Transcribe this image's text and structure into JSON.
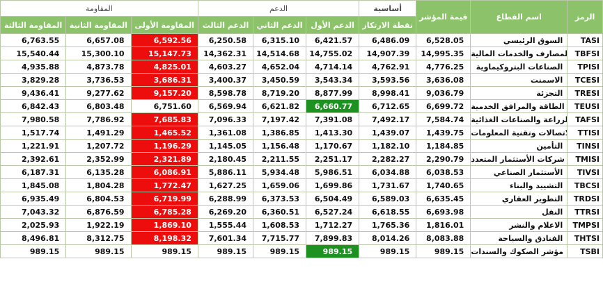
{
  "groups": {
    "resistance": "المقاومة",
    "support": "الدعم",
    "basic": "أساسية",
    "index_value": "قيمة المؤشر",
    "sector_name": "اسم القطاع",
    "symbol": "الرمز"
  },
  "columns": {
    "r3": "المقاومة الثالثة",
    "r2": "المقاومة الثانية",
    "r1": "المقاومة الأولى",
    "s3": "الدعم الثالث",
    "s2": "الدعم الثاني",
    "s1": "الدعم الأول",
    "pivot": "نقطة الارتكاز"
  },
  "colors": {
    "header_green": "#8cc36a",
    "highlight_red": "#ee0d0d",
    "highlight_green": "#1d9221"
  },
  "rows": [
    {
      "r3": "6,763.55",
      "r2": "6,657.08",
      "r1": "6,592.56",
      "s3": "6,250.58",
      "s2": "6,315.10",
      "s1": "6,421.57",
      "pivot": "6,486.09",
      "value": "6,528.05",
      "name": "السوق الرئيسي",
      "sym": "TASI",
      "r1_state": "red",
      "s1_state": ""
    },
    {
      "r3": "15,540.44",
      "r2": "15,300.10",
      "r1": "15,147.73",
      "s3": "14,362.31",
      "s2": "14,514.68",
      "s1": "14,755.02",
      "pivot": "14,907.39",
      "value": "14,995.35",
      "name": "المصارف والخدمات المالية",
      "sym": "TBFSI",
      "r1_state": "red",
      "s1_state": ""
    },
    {
      "r3": "4,935.88",
      "r2": "4,873.78",
      "r1": "4,825.01",
      "s3": "4,603.27",
      "s2": "4,652.04",
      "s1": "4,714.14",
      "pivot": "4,762.91",
      "value": "4,776.25",
      "name": "الصناعات البتروكيماوية",
      "sym": "TPISI",
      "r1_state": "red",
      "s1_state": ""
    },
    {
      "r3": "3,829.28",
      "r2": "3,736.53",
      "r1": "3,686.31",
      "s3": "3,400.37",
      "s2": "3,450.59",
      "s1": "3,543.34",
      "pivot": "3,593.56",
      "value": "3,636.08",
      "name": "الاسمنت",
      "sym": "TCESI",
      "r1_state": "red",
      "s1_state": ""
    },
    {
      "r3": "9,436.41",
      "r2": "9,277.62",
      "r1": "9,157.20",
      "s3": "8,598.78",
      "s2": "8,719.20",
      "s1": "8,877.99",
      "pivot": "8,998.41",
      "value": "9,036.79",
      "name": "التجزئة",
      "sym": "TRESI",
      "r1_state": "red",
      "s1_state": ""
    },
    {
      "r3": "6,842.43",
      "r2": "6,803.48",
      "r1": "6,751.60",
      "s3": "6,569.94",
      "s2": "6,621.82",
      "s1": "6,660.77",
      "pivot": "6,712.65",
      "value": "6,699.72",
      "name": "الطاقة والمرافق الخدمية",
      "sym": "TEUSI",
      "r1_state": "",
      "s1_state": "green"
    },
    {
      "r3": "7,980.58",
      "r2": "7,786.92",
      "r1": "7,685.83",
      "s3": "7,096.33",
      "s2": "7,197.42",
      "s1": "7,391.08",
      "pivot": "7,492.17",
      "value": "7,584.74",
      "name": "الزراعة والصناعات الغذائية",
      "sym": "TAFSI",
      "r1_state": "red",
      "s1_state": ""
    },
    {
      "r3": "1,517.74",
      "r2": "1,491.29",
      "r1": "1,465.52",
      "s3": "1,361.08",
      "s2": "1,386.85",
      "s1": "1,413.30",
      "pivot": "1,439.07",
      "value": "1,439.75",
      "name": "الاتصالات وتقنية المعلومات",
      "sym": "TTISI",
      "r1_state": "red",
      "s1_state": ""
    },
    {
      "r3": "1,221.91",
      "r2": "1,207.72",
      "r1": "1,196.29",
      "s3": "1,145.05",
      "s2": "1,156.48",
      "s1": "1,170.67",
      "pivot": "1,182.10",
      "value": "1,184.85",
      "name": "التأمين",
      "sym": "TINSI",
      "r1_state": "red",
      "s1_state": ""
    },
    {
      "r3": "2,392.61",
      "r2": "2,352.99",
      "r1": "2,321.89",
      "s3": "2,180.45",
      "s2": "2,211.55",
      "s1": "2,251.17",
      "pivot": "2,282.27",
      "value": "2,290.79",
      "name": "شركات الأستثمار المتعدد",
      "sym": "TMISI",
      "r1_state": "red",
      "s1_state": ""
    },
    {
      "r3": "6,187.31",
      "r2": "6,135.28",
      "r1": "6,086.91",
      "s3": "5,886.11",
      "s2": "5,934.48",
      "s1": "5,986.51",
      "pivot": "6,034.88",
      "value": "6,038.53",
      "name": "الأستثمار الصناعي",
      "sym": "TIVSI",
      "r1_state": "red",
      "s1_state": ""
    },
    {
      "r3": "1,845.08",
      "r2": "1,804.28",
      "r1": "1,772.47",
      "s3": "1,627.25",
      "s2": "1,659.06",
      "s1": "1,699.86",
      "pivot": "1,731.67",
      "value": "1,740.65",
      "name": "التشييد والبناء",
      "sym": "TBCSI",
      "r1_state": "red",
      "s1_state": ""
    },
    {
      "r3": "6,935.49",
      "r2": "6,804.53",
      "r1": "6,719.99",
      "s3": "6,288.99",
      "s2": "6,373.53",
      "s1": "6,504.49",
      "pivot": "6,589.03",
      "value": "6,635.45",
      "name": "التطوير العقاري",
      "sym": "TRDSI",
      "r1_state": "red",
      "s1_state": ""
    },
    {
      "r3": "7,043.32",
      "r2": "6,876.59",
      "r1": "6,785.28",
      "s3": "6,269.20",
      "s2": "6,360.51",
      "s1": "6,527.24",
      "pivot": "6,618.55",
      "value": "6,693.98",
      "name": "النقل",
      "sym": "TTRSI",
      "r1_state": "red",
      "s1_state": ""
    },
    {
      "r3": "2,025.93",
      "r2": "1,922.19",
      "r1": "1,869.10",
      "s3": "1,555.44",
      "s2": "1,608.53",
      "s1": "1,712.27",
      "pivot": "1,765.36",
      "value": "1,816.01",
      "name": "الاعلام والنشر",
      "sym": "TMPSI",
      "r1_state": "red",
      "s1_state": ""
    },
    {
      "r3": "8,496.81",
      "r2": "8,312.75",
      "r1": "8,198.32",
      "s3": "7,601.34",
      "s2": "7,715.77",
      "s1": "7,899.83",
      "pivot": "8,014.26",
      "value": "8,083.88",
      "name": "الفنادق والسياحة",
      "sym": "THTSI",
      "r1_state": "red",
      "s1_state": ""
    },
    {
      "r3": "989.15",
      "r2": "989.15",
      "r1": "989.15",
      "s3": "989.15",
      "s2": "989.15",
      "s1": "989.15",
      "pivot": "989.15",
      "value": "989.15",
      "name": "مؤشر الصكوك والسندات",
      "sym": "TSBI",
      "r1_state": "",
      "s1_state": "green"
    }
  ]
}
